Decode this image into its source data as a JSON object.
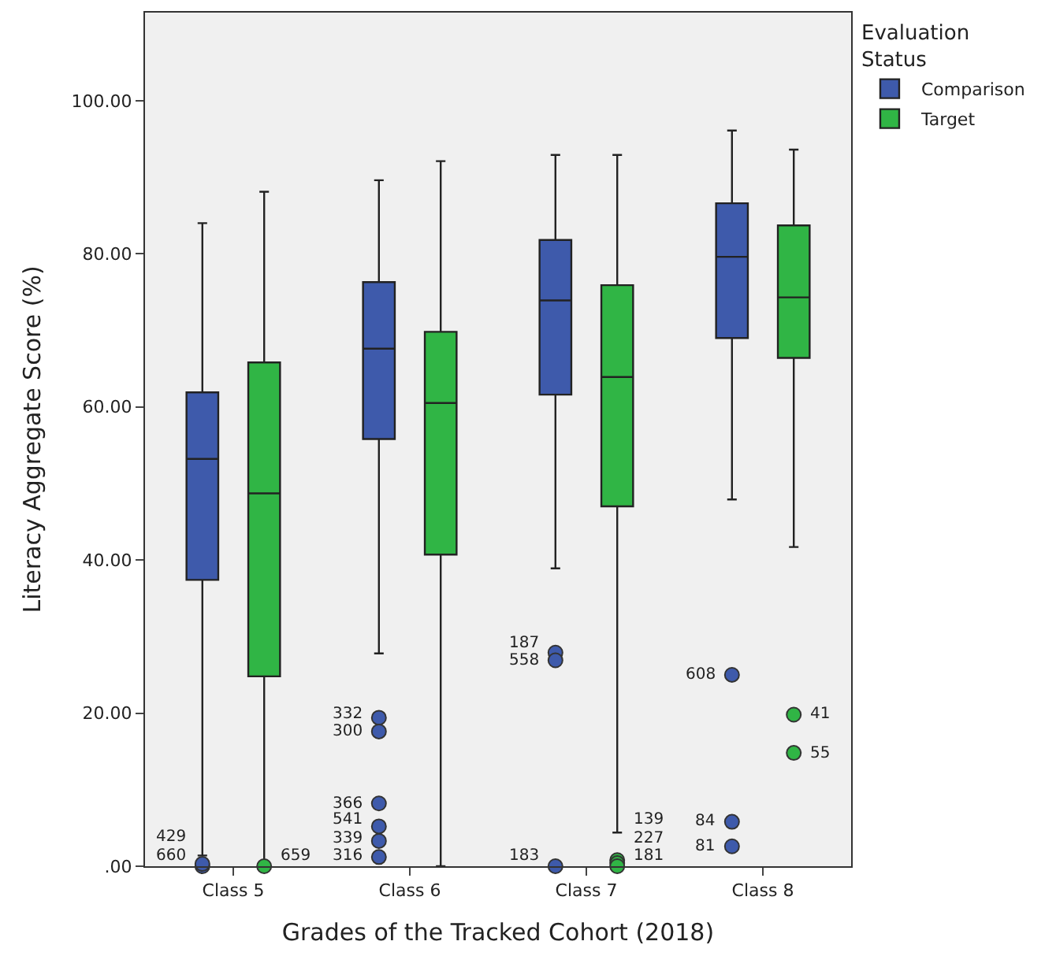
{
  "chart_data": {
    "type": "box",
    "xlabel": "Grades of the Tracked Cohort (2018)",
    "ylabel": "Literacy Aggregate Score (%)",
    "legend_title": "Evaluation Status",
    "categories": [
      "Class 5",
      "Class 6",
      "Class 7",
      "Class 8"
    ],
    "series": [
      {
        "name": "Comparison",
        "color": "#3e5aab",
        "boxes": [
          {
            "low": 1.4,
            "q1": 37.4,
            "median": 53.2,
            "q3": 61.9,
            "high": 84.0,
            "outliers": [
              0,
              0.3
            ]
          },
          {
            "low": 27.8,
            "q1": 55.8,
            "median": 67.6,
            "q3": 76.3,
            "high": 89.6,
            "outliers": [
              19.4,
              17.6,
              8.2,
              5.2,
              3.3,
              1.2
            ]
          },
          {
            "low": 38.9,
            "q1": 61.6,
            "median": 73.9,
            "q3": 81.8,
            "high": 92.9,
            "outliers": [
              27.9,
              26.9,
              0
            ]
          },
          {
            "low": 47.9,
            "q1": 69.0,
            "median": 79.6,
            "q3": 86.6,
            "high": 96.1,
            "outliers": [
              25.0,
              5.8,
              2.6
            ]
          }
        ]
      },
      {
        "name": "Target",
        "color": "#30b545",
        "boxes": [
          {
            "low": 0,
            "q1": 24.8,
            "median": 48.7,
            "q3": 65.8,
            "high": 88.1,
            "outliers": [
              0
            ]
          },
          {
            "low": 0,
            "q1": 40.7,
            "median": 60.5,
            "q3": 69.8,
            "high": 92.1
          },
          {
            "low": 4.4,
            "q1": 47.0,
            "median": 63.9,
            "q3": 75.9,
            "high": 92.9,
            "outliers": [
              0.8,
              0.4,
              0
            ]
          },
          {
            "low": 41.7,
            "q1": 66.4,
            "median": 74.3,
            "q3": 83.7,
            "high": 93.6,
            "outliers": [
              19.8,
              14.8
            ]
          }
        ]
      }
    ],
    "annotations": [
      "660",
      "429",
      "332",
      "300",
      "366",
      "541",
      "339",
      "316",
      "187",
      "558",
      "183",
      "608",
      "84",
      "81",
      "659",
      "139",
      "227",
      "181",
      "41",
      "55"
    ],
    "ylim": [
      0,
      111.5
    ],
    "yticks": [
      {
        "value": 0,
        "label": ".00"
      },
      {
        "value": 20,
        "label": "20.00"
      },
      {
        "value": 40,
        "label": "40.00"
      },
      {
        "value": 60,
        "label": "60.00"
      },
      {
        "value": 80,
        "label": "80.00"
      },
      {
        "value": 100,
        "label": "100.00"
      }
    ],
    "grid": false,
    "legend": "top right"
  }
}
